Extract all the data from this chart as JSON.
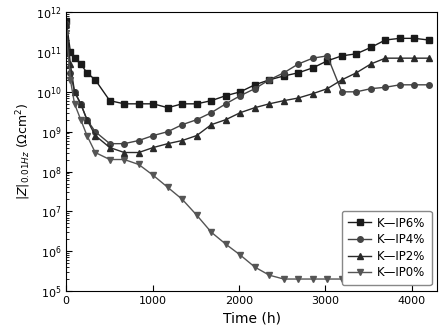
{
  "title": "",
  "xlabel": "Time (h)",
  "xlim": [
    0,
    4300
  ],
  "ylim_log": [
    5,
    12
  ],
  "background_color": "#ffffff",
  "series": {
    "K-IP6%": {
      "marker": "s",
      "color": "#1a1a1a",
      "x": [
        0,
        48,
        96,
        168,
        240,
        336,
        504,
        672,
        840,
        1008,
        1176,
        1344,
        1512,
        1680,
        1848,
        2016,
        2184,
        2352,
        2520,
        2688,
        2856,
        3024,
        3192,
        3360,
        3528,
        3696,
        3864,
        4032,
        4200
      ],
      "y": [
        600000000000.0,
        100000000000.0,
        70000000000.0,
        50000000000.0,
        30000000000.0,
        20000000000.0,
        6000000000.0,
        5000000000.0,
        5000000000.0,
        5000000000.0,
        4000000000.0,
        5000000000.0,
        5000000000.0,
        6000000000.0,
        8000000000.0,
        10000000000.0,
        15000000000.0,
        20000000000.0,
        25000000000.0,
        30000000000.0,
        40000000000.0,
        60000000000.0,
        80000000000.0,
        90000000000.0,
        130000000000.0,
        200000000000.0,
        220000000000.0,
        220000000000.0,
        200000000000.0
      ]
    },
    "K-IP4%": {
      "marker": "o",
      "color": "#444444",
      "x": [
        0,
        48,
        96,
        168,
        240,
        336,
        504,
        672,
        840,
        1008,
        1176,
        1344,
        1512,
        1680,
        1848,
        2016,
        2184,
        2352,
        2520,
        2688,
        2856,
        3024,
        3192,
        3360,
        3528,
        3696,
        3864,
        4032,
        4200
      ],
      "y": [
        500000000000.0,
        30000000000.0,
        10000000000.0,
        5000000000.0,
        2000000000.0,
        1000000000.0,
        500000000.0,
        500000000.0,
        600000000.0,
        800000000.0,
        1000000000.0,
        1500000000.0,
        2000000000.0,
        3000000000.0,
        5000000000.0,
        8000000000.0,
        12000000000.0,
        20000000000.0,
        30000000000.0,
        50000000000.0,
        70000000000.0,
        80000000000.0,
        10000000000.0,
        10000000000.0,
        12000000000.0,
        13000000000.0,
        15000000000.0,
        15000000000.0,
        15000000000.0
      ]
    },
    "K-IP2%": {
      "marker": "^",
      "color": "#2a2a2a",
      "x": [
        0,
        48,
        96,
        168,
        240,
        336,
        504,
        672,
        840,
        1008,
        1176,
        1344,
        1512,
        1680,
        1848,
        2016,
        2184,
        2352,
        2520,
        2688,
        2856,
        3024,
        3192,
        3360,
        3528,
        3696,
        3864,
        4032,
        4200
      ],
      "y": [
        500000000000.0,
        50000000000.0,
        10000000000.0,
        5000000000.0,
        2000000000.0,
        800000000.0,
        400000000.0,
        300000000.0,
        300000000.0,
        400000000.0,
        500000000.0,
        600000000.0,
        800000000.0,
        1500000000.0,
        2000000000.0,
        3000000000.0,
        4000000000.0,
        5000000000.0,
        6000000000.0,
        7000000000.0,
        9000000000.0,
        12000000000.0,
        20000000000.0,
        30000000000.0,
        50000000000.0,
        70000000000.0,
        70000000000.0,
        70000000000.0,
        70000000000.0
      ]
    },
    "K-IP0%": {
      "marker": "v",
      "color": "#555555",
      "x": [
        0,
        48,
        96,
        168,
        240,
        336,
        504,
        672,
        840,
        1008,
        1176,
        1344,
        1512,
        1680,
        1848,
        2016,
        2184,
        2352,
        2520,
        2688,
        2856,
        3024,
        3192,
        3360,
        3528,
        3696,
        3864,
        4032,
        4200
      ],
      "y": [
        300000000000.0,
        20000000000.0,
        5000000000.0,
        2000000000.0,
        800000000.0,
        300000000.0,
        200000000.0,
        200000000.0,
        150000000.0,
        80000000.0,
        40000000.0,
        20000000.0,
        8000000.0,
        3000000.0,
        1500000.0,
        800000.0,
        400000.0,
        250000.0,
        200000.0,
        200000.0,
        200000.0,
        200000.0,
        200000.0,
        200000.0,
        200000.0,
        200000.0,
        200000.0,
        200000.0,
        200000.0
      ]
    }
  },
  "legend_labels": [
    "K—IP6%",
    "K—IP4%",
    "K—IP2%",
    "K—IP0%"
  ],
  "xticks": [
    0,
    1000,
    2000,
    3000,
    4000
  ],
  "yticks": [
    5,
    6,
    7,
    8,
    9,
    10,
    11,
    12
  ]
}
